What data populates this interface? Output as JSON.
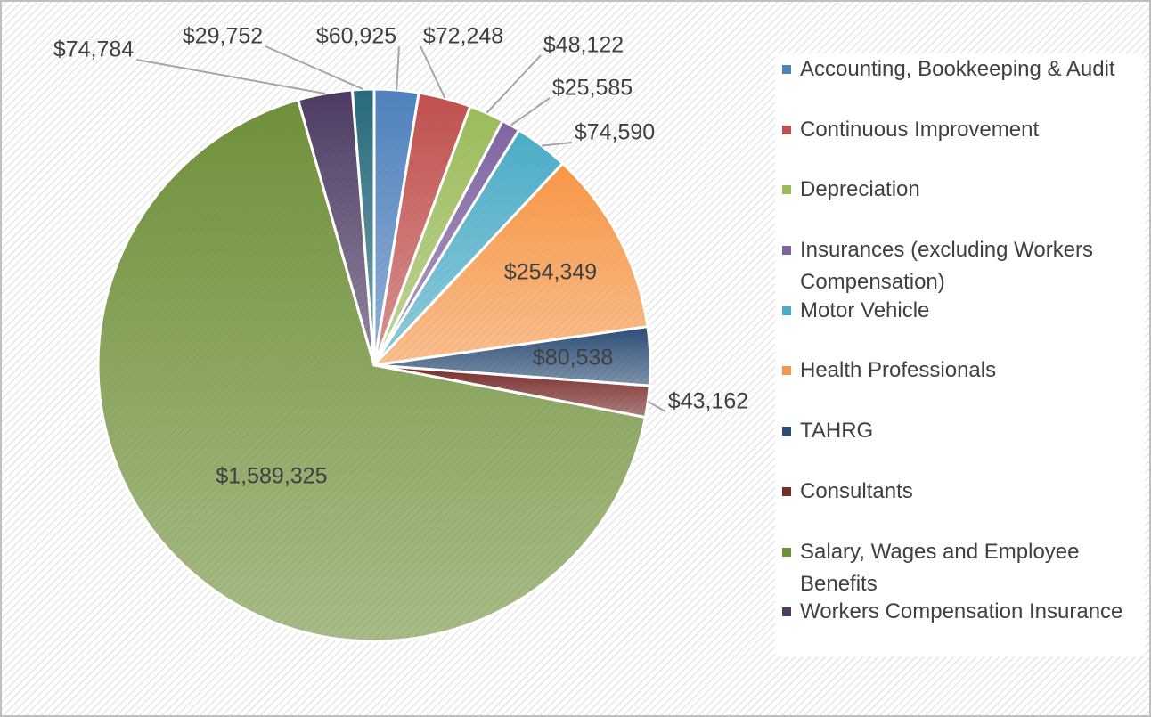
{
  "chart_data": {
    "type": "pie",
    "categories": [
      "Accounting, Bookkeeping & Audit",
      "Continuous Improvement",
      "Depreciation",
      "Insurances (excluding Workers Compensation)",
      "Motor Vehicle",
      "Health Professionals",
      "TAHRG",
      "Consultants",
      "Salary, Wages and Employee Benefits",
      "Workers Compensation Insurance",
      null
    ],
    "values": [
      60925,
      72248,
      48122,
      25585,
      74590,
      254349,
      80538,
      43162,
      1589325,
      74784,
      29752
    ],
    "value_labels": [
      "$60,925",
      "$72,248",
      "$48,122",
      "$25,585",
      "$74,590",
      "$254,349",
      "$80,538",
      "$43,162",
      "$1,589,325",
      "$74,784",
      "$29,752"
    ],
    "colors": [
      "#4f81bd",
      "#c0504d",
      "#9bbb59",
      "#8064a2",
      "#4bacc6",
      "#f79646",
      "#2c4d75",
      "#772c2a",
      "#70903a",
      "#4d3b62",
      "#276a7c"
    ],
    "legend": "right"
  }
}
